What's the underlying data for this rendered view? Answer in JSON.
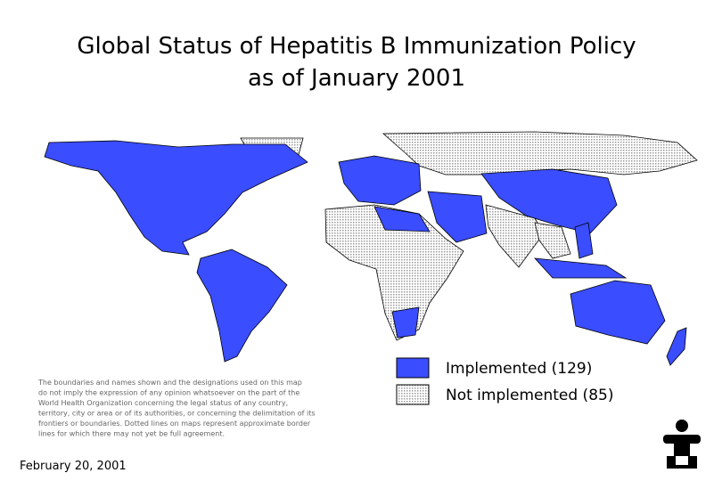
{
  "header": {
    "title_lines": [
      "Global Status of Hepatitis B Immunization Policy",
      "as of January 2001"
    ]
  },
  "legend": [
    {
      "label": "Implemented (129)",
      "color": "#3a4dff"
    },
    {
      "label": "Not implemented (85)",
      "color": "#d6d6d6"
    }
  ],
  "disclaimer": [
    "The boundaries and names shown and the designations used on this map",
    "do not imply the expression of any opinion whatsoever on the part of the",
    "World Health Organization concerning the legal status of any country,",
    "territory, city or area or of its authorities, or concerning the delimitation of its",
    "frontiers or boundaries. Dotted lines on maps represent approximate border",
    "lines for which there may not yet be full agreement."
  ],
  "date": "February 20, 2001"
}
